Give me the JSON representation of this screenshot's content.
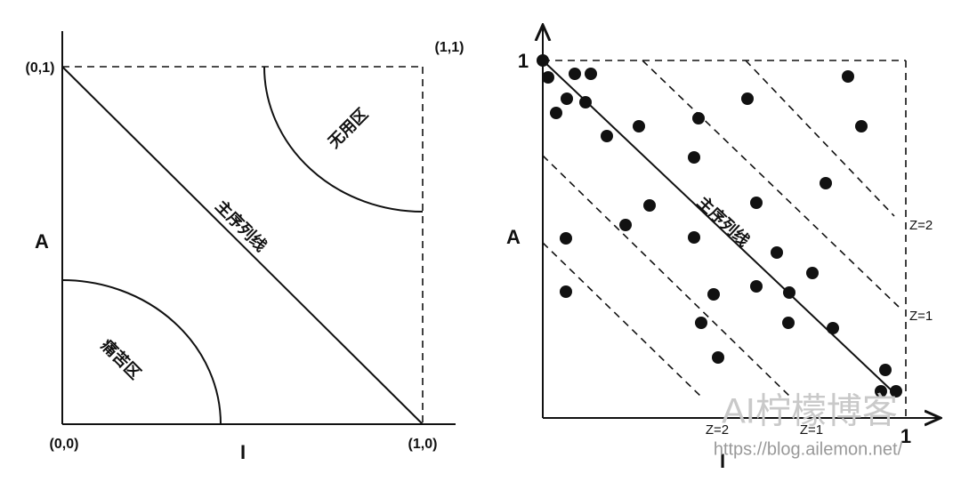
{
  "left": {
    "corner_top_left": "(0,1)",
    "corner_top_right": "(1,1)",
    "corner_origin": "(0,0)",
    "corner_bottom_right": "(1,0)",
    "y_label": "A",
    "x_label": "I",
    "zone_useless": "无用区",
    "zone_pain": "痛苦区",
    "main_sequence": "主序列线"
  },
  "right": {
    "y_max": "1",
    "y_label": "A",
    "main_sequence": "主序列线",
    "z2_right": "Z=2",
    "z1_right": "Z=1",
    "z2_bottom": "Z=2",
    "z1_bottom": "Z=1",
    "x_max": "1",
    "x_label": "I"
  },
  "watermark": {
    "title": "AI柠檬博客",
    "url": "https://blog.ailemon.net/"
  }
}
